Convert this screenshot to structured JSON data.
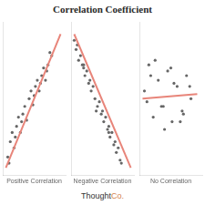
{
  "chart_data": [
    {
      "type": "scatter",
      "title": "Correlation Coefficient",
      "annotations": [
        {
          "text": "Thought",
          "color": "#333333"
        },
        {
          "text": "Co.",
          "color": "#d4824a"
        }
      ],
      "x_label": "Positive Correlation",
      "xlim": [
        0,
        1
      ],
      "ylim": [
        0,
        1
      ],
      "grid": false,
      "tick_labels": false,
      "series": [
        {
          "type": "scatter",
          "color": "#666666",
          "x": [
            0.08,
            0.12,
            0.18,
            0.22,
            0.28,
            0.32,
            0.38,
            0.42,
            0.48,
            0.52,
            0.58,
            0.62,
            0.68,
            0.72,
            0.78,
            0.15,
            0.25,
            0.35,
            0.45,
            0.55,
            0.65,
            0.75,
            0.1,
            0.3,
            0.5,
            0.7,
            0.2,
            0.6
          ],
          "values": [
            0.12,
            0.22,
            0.18,
            0.32,
            0.28,
            0.4,
            0.36,
            0.5,
            0.46,
            0.58,
            0.55,
            0.65,
            0.62,
            0.72,
            0.78,
            0.28,
            0.38,
            0.45,
            0.55,
            0.62,
            0.7,
            0.8,
            0.08,
            0.35,
            0.52,
            0.68,
            0.25,
            0.6
          ]
        },
        {
          "type": "line",
          "color": "#e8857a",
          "x": [
            0.05,
            0.92
          ],
          "values": [
            0.05,
            0.92
          ]
        }
      ]
    },
    {
      "type": "scatter",
      "x_label": "Negative Correlation",
      "xlim": [
        0,
        1
      ],
      "ylim": [
        0,
        1
      ],
      "grid": false,
      "tick_labels": false,
      "series": [
        {
          "type": "scatter",
          "color": "#666666",
          "x": [
            0.08,
            0.12,
            0.18,
            0.22,
            0.28,
            0.32,
            0.38,
            0.42,
            0.48,
            0.52,
            0.58,
            0.62,
            0.68,
            0.72,
            0.78,
            0.15,
            0.25,
            0.35,
            0.45,
            0.55,
            0.65,
            0.75,
            0.1,
            0.3,
            0.5,
            0.7,
            0.2,
            0.6,
            0.05,
            0.4,
            0.8,
            0.6,
            0.2
          ],
          "values": [
            0.82,
            0.75,
            0.72,
            0.65,
            0.6,
            0.55,
            0.5,
            0.45,
            0.4,
            0.35,
            0.3,
            0.25,
            0.2,
            0.15,
            0.1,
            0.78,
            0.68,
            0.58,
            0.48,
            0.38,
            0.28,
            0.18,
            0.85,
            0.62,
            0.42,
            0.22,
            0.72,
            0.32,
            0.88,
            0.42,
            0.08,
            0.28,
            0.7
          ]
        },
        {
          "type": "line",
          "color": "#e8857a",
          "x": [
            0.05,
            0.95
          ],
          "values": [
            0.92,
            0.05
          ]
        }
      ]
    },
    {
      "type": "scatter",
      "x_label": "No Correlation",
      "xlim": [
        0,
        1
      ],
      "ylim": [
        0,
        1
      ],
      "grid": false,
      "tick_labels": false,
      "series": [
        {
          "type": "scatter",
          "color": "#666666",
          "x": [
            0.08,
            0.15,
            0.22,
            0.3,
            0.38,
            0.45,
            0.52,
            0.6,
            0.68,
            0.75,
            0.82,
            0.12,
            0.25,
            0.4,
            0.55,
            0.7,
            0.18,
            0.35,
            0.5,
            0.65,
            0.8
          ],
          "values": [
            0.55,
            0.72,
            0.38,
            0.62,
            0.45,
            0.68,
            0.35,
            0.58,
            0.42,
            0.65,
            0.5,
            0.48,
            0.75,
            0.3,
            0.6,
            0.4,
            0.65,
            0.45,
            0.7,
            0.35,
            0.58
          ]
        },
        {
          "type": "line",
          "color": "#e8857a",
          "x": [
            0.05,
            0.92
          ],
          "values": [
            0.5,
            0.53
          ]
        }
      ]
    }
  ]
}
